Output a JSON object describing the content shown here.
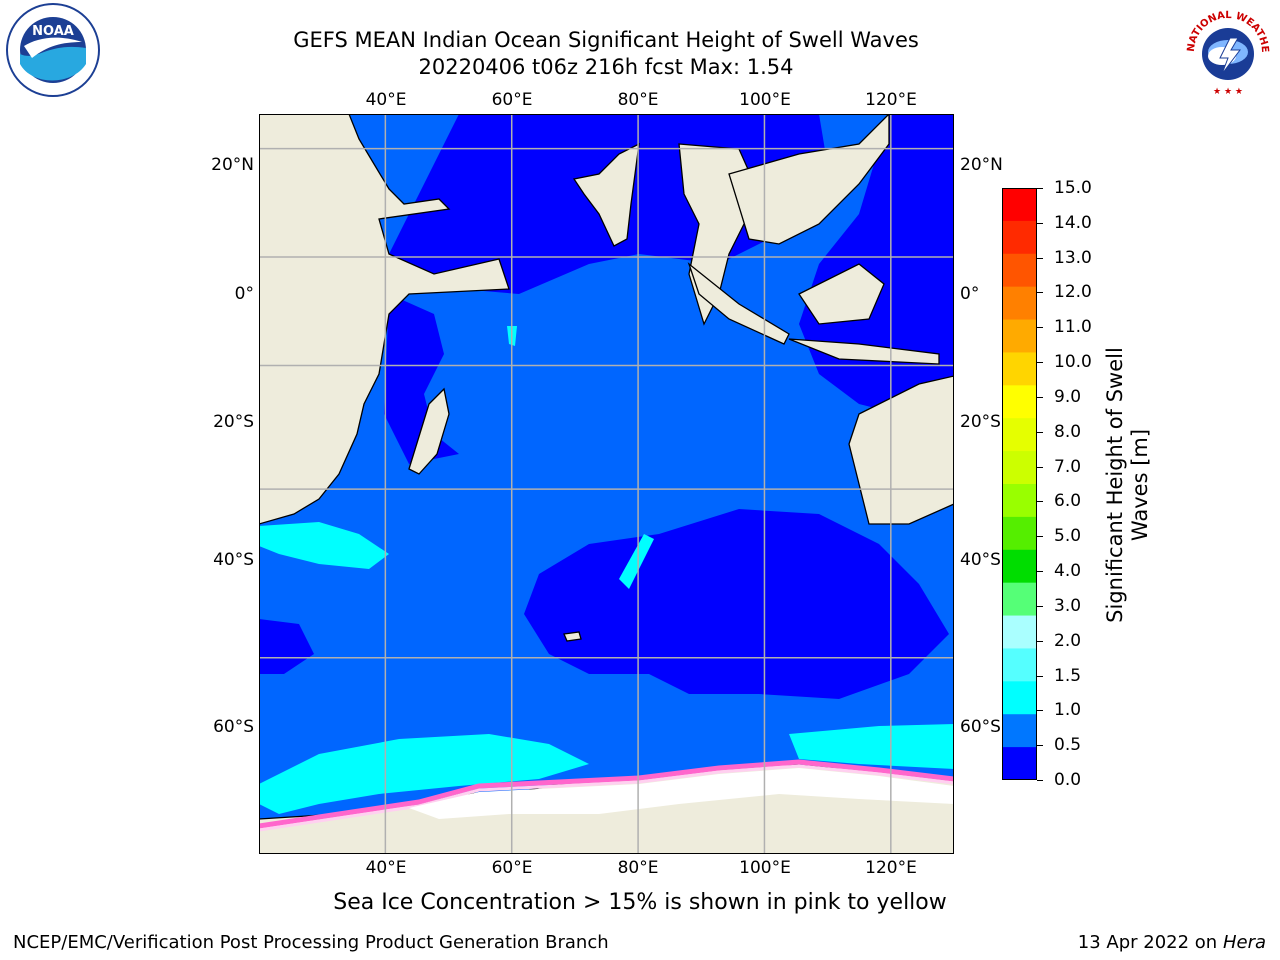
{
  "title": {
    "line1": "GEFS MEAN Indian Ocean Significant Height of Swell Waves",
    "line2": "20220406 t06z 216h fcst   Max: 1.54"
  },
  "map": {
    "lon_ticks": [
      "40°E",
      "60°E",
      "80°E",
      "100°E",
      "120°E"
    ],
    "lat_ticks": [
      "20°N",
      "0°",
      "20°S",
      "40°S",
      "60°S"
    ],
    "extent": {
      "lon_min": 20,
      "lon_max": 130,
      "lat_min": -74,
      "lat_max": 26
    },
    "colors": {
      "land": "#eeecdc",
      "ocean_low": "#0000ff",
      "ocean_mid": "#0066ff",
      "ocean_high": "#00ffff",
      "ice": "#ff66cc",
      "grid": "#b0b0b0"
    }
  },
  "colorbar": {
    "label_line1": "Significant Height of Swell",
    "label_line2": "Waves [m]",
    "ticks": [
      "15.0",
      "14.0",
      "13.0",
      "12.0",
      "11.0",
      "10.0",
      "9.0",
      "8.0",
      "7.0",
      "6.0",
      "5.0",
      "4.0",
      "3.0",
      "2.0",
      "1.5",
      "1.0",
      "0.5",
      "0.0"
    ],
    "colors_top_to_bottom": [
      "#ff0000",
      "#ff2a00",
      "#ff5500",
      "#ff8000",
      "#ffaa00",
      "#ffd500",
      "#ffff00",
      "#e5ff00",
      "#ccff00",
      "#99ff00",
      "#55ee00",
      "#00dd00",
      "#55ff77",
      "#aaffff",
      "#55ffff",
      "#00ffff",
      "#0077ff",
      "#0000ff"
    ]
  },
  "caption": "Sea Ice Concentration > 15% is shown in pink to yellow",
  "footer": {
    "left": "NCEP/EMC/Verification Post Processing Product Generation Branch",
    "right_prefix": "13 Apr 2022 on ",
    "right_host": "Hera"
  },
  "logos": {
    "noaa_text": "NOAA",
    "nws_text": "NATIONAL WEATHER SERVICE"
  }
}
